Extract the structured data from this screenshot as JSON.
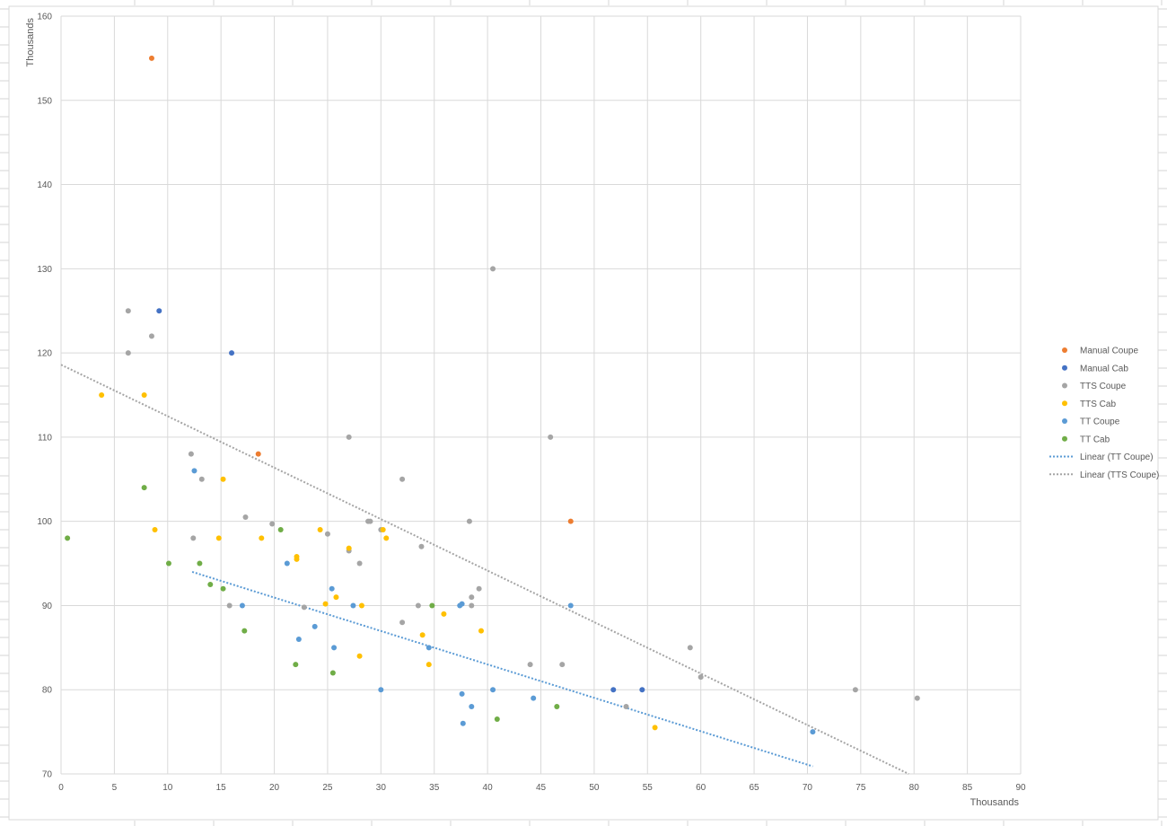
{
  "chart_data": {
    "type": "scatter",
    "title": "",
    "xlabel": "Thousands",
    "ylabel": "Thousands",
    "xlim": [
      0,
      90
    ],
    "ylim": [
      70,
      160
    ],
    "x_ticks": [
      0,
      5,
      10,
      15,
      20,
      25,
      30,
      35,
      40,
      45,
      50,
      55,
      60,
      65,
      70,
      75,
      80,
      85,
      90
    ],
    "y_ticks": [
      70,
      80,
      90,
      100,
      110,
      120,
      130,
      140,
      150,
      160
    ],
    "grid": true,
    "legend_position": "right",
    "series": [
      {
        "name": "Manual Coupe",
        "color": "#ed7d31",
        "points": [
          [
            8.5,
            155
          ],
          [
            18.5,
            108
          ],
          [
            47.8,
            100
          ]
        ]
      },
      {
        "name": "Manual Cab",
        "color": "#4472c4",
        "points": [
          [
            9.2,
            125
          ],
          [
            16,
            120
          ],
          [
            51.8,
            80
          ],
          [
            54.5,
            80
          ]
        ]
      },
      {
        "name": "TTS Coupe",
        "color": "#a5a5a5",
        "points": [
          [
            6.3,
            125
          ],
          [
            6.3,
            120
          ],
          [
            8.5,
            122
          ],
          [
            12.2,
            108
          ],
          [
            12.4,
            98
          ],
          [
            13.2,
            105
          ],
          [
            15.8,
            90
          ],
          [
            17.3,
            100.5
          ],
          [
            19.8,
            99.7
          ],
          [
            22.8,
            89.8
          ],
          [
            25,
            98.5
          ],
          [
            27,
            110
          ],
          [
            27,
            96.5
          ],
          [
            28,
            95
          ],
          [
            28.8,
            100
          ],
          [
            29,
            100
          ],
          [
            30,
            99
          ],
          [
            32,
            105
          ],
          [
            32,
            88
          ],
          [
            33.5,
            90
          ],
          [
            33.8,
            97
          ],
          [
            38.3,
            100
          ],
          [
            38.5,
            91
          ],
          [
            38.5,
            90
          ],
          [
            39.2,
            92
          ],
          [
            40.5,
            130
          ],
          [
            44,
            83
          ],
          [
            45.9,
            110
          ],
          [
            47,
            83
          ],
          [
            53,
            78
          ],
          [
            59,
            85
          ],
          [
            60,
            81.5
          ],
          [
            74.5,
            80
          ],
          [
            80.3,
            79
          ]
        ]
      },
      {
        "name": "TTS Cab",
        "color": "#ffc000",
        "points": [
          [
            3.8,
            115
          ],
          [
            7.8,
            115
          ],
          [
            8.8,
            99
          ],
          [
            14.8,
            98
          ],
          [
            15.2,
            105
          ],
          [
            18.8,
            98
          ],
          [
            22.1,
            95.5
          ],
          [
            22.1,
            95.8
          ],
          [
            24.3,
            99
          ],
          [
            24.8,
            90.2
          ],
          [
            25.8,
            91
          ],
          [
            27,
            96.8
          ],
          [
            28,
            84
          ],
          [
            28.2,
            90
          ],
          [
            30.2,
            99
          ],
          [
            30.5,
            98
          ],
          [
            33.9,
            86.5
          ],
          [
            34.5,
            83
          ],
          [
            35.9,
            89
          ],
          [
            39.4,
            87
          ],
          [
            55.7,
            75.5
          ]
        ]
      },
      {
        "name": "TT Coupe",
        "color": "#5b9bd5",
        "points": [
          [
            12.5,
            106
          ],
          [
            17,
            90
          ],
          [
            21.2,
            95
          ],
          [
            22.3,
            86
          ],
          [
            23.8,
            87.5
          ],
          [
            25.4,
            92
          ],
          [
            25.6,
            85
          ],
          [
            27.4,
            90
          ],
          [
            30,
            80
          ],
          [
            34.5,
            85
          ],
          [
            37.4,
            90
          ],
          [
            37.6,
            90.2
          ],
          [
            37.6,
            79.5
          ],
          [
            37.7,
            76
          ],
          [
            38.5,
            78
          ],
          [
            40.5,
            80
          ],
          [
            44.3,
            79
          ],
          [
            47.8,
            90
          ],
          [
            70.5,
            75
          ]
        ]
      },
      {
        "name": "TT Cab",
        "color": "#70ad47",
        "points": [
          [
            0.6,
            98
          ],
          [
            7.8,
            104
          ],
          [
            10.1,
            95
          ],
          [
            13,
            95
          ],
          [
            14,
            92.5
          ],
          [
            15.2,
            92
          ],
          [
            17.2,
            87
          ],
          [
            20.6,
            99
          ],
          [
            22,
            83
          ],
          [
            25.5,
            82
          ],
          [
            34.8,
            90
          ],
          [
            40.9,
            76.5
          ],
          [
            46.5,
            78
          ]
        ]
      }
    ],
    "trendlines": [
      {
        "name": "Linear (TT Coupe)",
        "color": "#5b9bd5",
        "from": [
          12.3,
          94
        ],
        "to": [
          70.5,
          70.9
        ]
      },
      {
        "name": "Linear (TTS Coupe)",
        "color": "#a5a5a5",
        "from": [
          0,
          118.6
        ],
        "to": [
          79.5,
          70
        ]
      }
    ]
  }
}
